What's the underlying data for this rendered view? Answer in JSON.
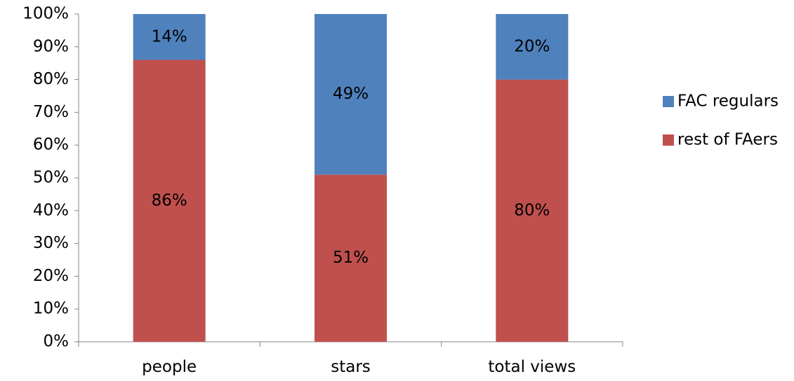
{
  "chart_data": {
    "type": "bar",
    "stacked": true,
    "categories": [
      "people",
      "stars",
      "total views"
    ],
    "series": [
      {
        "name": "rest of FAers",
        "color": "#C0504D",
        "values": [
          86,
          51,
          80
        ],
        "labels": [
          "86%",
          "51%",
          "80%"
        ]
      },
      {
        "name": "FAC regulars",
        "color": "#4F81BD",
        "values": [
          14,
          49,
          20
        ],
        "labels": [
          "14%",
          "49%",
          "20%"
        ]
      }
    ],
    "ylim": [
      0,
      100
    ],
    "yticks": [
      0,
      10,
      20,
      30,
      40,
      50,
      60,
      70,
      80,
      90,
      100
    ],
    "ytick_labels": [
      "0%",
      "10%",
      "20%",
      "30%",
      "40%",
      "50%",
      "60%",
      "70%",
      "80%",
      "90%",
      "100%"
    ],
    "grid": false,
    "legend": {
      "position": "right",
      "entries": [
        {
          "label": "FAC regulars",
          "color": "#4F81BD"
        },
        {
          "label": "rest of FAers",
          "color": "#C0504D"
        }
      ]
    }
  }
}
